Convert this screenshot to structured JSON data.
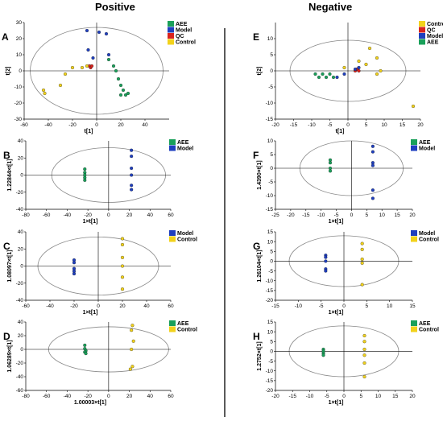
{
  "headers": {
    "left": "Positive",
    "right": "Negative"
  },
  "colors": {
    "AEE": "#1aa05a",
    "Model": "#1f3fbf",
    "QC": "#d8231e",
    "Control": "#f2d21b",
    "ellipse": "#888888"
  },
  "chart_data": [
    {
      "type": "scatter",
      "label": "A",
      "xlabel": "t[1]",
      "ylabel": "t[2]",
      "xlim": [
        -60,
        60
      ],
      "ylim": [
        -30,
        30
      ],
      "xticks": [
        -60,
        -40,
        -20,
        0,
        20,
        40
      ],
      "yticks": [
        -30,
        -20,
        -10,
        0,
        10,
        20,
        30
      ],
      "ellipse": {
        "rx": 55,
        "ry": 27
      },
      "legend": [
        "AEE",
        "Model",
        "QC",
        "Control"
      ],
      "series": [
        {
          "name": "AEE",
          "points": [
            [
              10,
              7
            ],
            [
              14,
              3
            ],
            [
              16,
              0
            ],
            [
              18,
              -5
            ],
            [
              20,
              -9
            ],
            [
              22,
              -12
            ],
            [
              24,
              -15
            ],
            [
              26,
              -14
            ],
            [
              20,
              -15
            ]
          ]
        },
        {
          "name": "Model",
          "points": [
            [
              -8,
              25
            ],
            [
              -7,
              13
            ],
            [
              2,
              24
            ],
            [
              8,
              23
            ],
            [
              10,
              10
            ],
            [
              -3,
              8
            ]
          ]
        },
        {
          "name": "QC",
          "points": [
            [
              -6,
              3
            ],
            [
              -5,
              2
            ],
            [
              -4,
              3
            ]
          ]
        },
        {
          "name": "Control",
          "points": [
            [
              -44,
              -12
            ],
            [
              -43,
              -14
            ],
            [
              -30,
              -9
            ],
            [
              -26,
              -2
            ],
            [
              -20,
              2
            ],
            [
              -12,
              2
            ],
            [
              -8,
              3
            ]
          ]
        }
      ]
    },
    {
      "type": "scatter",
      "label": "B",
      "xlabel": "1×t[1]",
      "ylabel": "1.22844×t[1]",
      "xlim": [
        -80,
        60
      ],
      "ylim": [
        -40,
        40
      ],
      "xticks": [
        -80,
        -60,
        -40,
        -20,
        0,
        20,
        40,
        60
      ],
      "yticks": [
        -40,
        -20,
        0,
        20,
        40
      ],
      "ellipse": {
        "rx": 55,
        "ry": 32
      },
      "legend": [
        "AEE",
        "Model"
      ],
      "series": [
        {
          "name": "AEE",
          "points": [
            [
              -23,
              7
            ],
            [
              -23,
              3
            ],
            [
              -23,
              0
            ],
            [
              -23,
              -3
            ],
            [
              -23,
              -6
            ]
          ]
        },
        {
          "name": "Model",
          "points": [
            [
              22,
              29
            ],
            [
              22,
              22
            ],
            [
              22,
              8
            ],
            [
              22,
              0
            ],
            [
              22,
              -12
            ],
            [
              22,
              -17
            ]
          ]
        }
      ]
    },
    {
      "type": "scatter",
      "label": "C",
      "xlabel": "1×t[1]",
      "ylabel": "1.08097×t[1]",
      "xlim": [
        -60,
        60
      ],
      "ylim": [
        -40,
        40
      ],
      "xticks": [
        -60,
        -40,
        -20,
        0,
        20,
        40,
        60
      ],
      "yticks": [
        -40,
        -20,
        0,
        20,
        40
      ],
      "ellipse": {
        "rx": 50,
        "ry": 34
      },
      "legend": [
        "Model",
        "Control"
      ],
      "series": [
        {
          "name": "Model",
          "points": [
            [
              -20,
              7
            ],
            [
              -20,
              4
            ],
            [
              -20,
              -3
            ],
            [
              -20,
              -6
            ],
            [
              -20,
              -9
            ]
          ]
        },
        {
          "name": "Control",
          "points": [
            [
              20,
              32
            ],
            [
              20,
              25
            ],
            [
              20,
              10
            ],
            [
              20,
              0
            ],
            [
              20,
              -13
            ],
            [
              20,
              -27
            ]
          ]
        }
      ]
    },
    {
      "type": "scatter",
      "label": "D",
      "xlabel": "1.00003×t[1]",
      "ylabel": "1.06289×t[1]",
      "xlim": [
        -80,
        60
      ],
      "ylim": [
        -60,
        40
      ],
      "xticks": [
        -80,
        -60,
        -40,
        -20,
        0,
        20,
        40,
        60
      ],
      "yticks": [
        -60,
        -40,
        -20,
        0,
        20,
        40
      ],
      "ellipse": {
        "rx": 58,
        "ry": 33
      },
      "legend": [
        "AEE",
        "Control"
      ],
      "series": [
        {
          "name": "AEE",
          "points": [
            [
              -23,
              6
            ],
            [
              -23,
              1
            ],
            [
              -22,
              -2
            ],
            [
              -23,
              -4
            ],
            [
              -22,
              -6
            ]
          ]
        },
        {
          "name": "Control",
          "points": [
            [
              23,
              35
            ],
            [
              22,
              28
            ],
            [
              24,
              12
            ],
            [
              22,
              0
            ],
            [
              23,
              -25
            ],
            [
              21,
              -29
            ]
          ]
        }
      ]
    },
    {
      "type": "scatter",
      "label": "E",
      "xlabel": "t[1]",
      "ylabel": "t[2]",
      "xlim": [
        -20,
        20
      ],
      "ylim": [
        -15,
        15
      ],
      "xticks": [
        -20,
        -15,
        -10,
        -5,
        0,
        5,
        10,
        15,
        20
      ],
      "yticks": [
        -15,
        -10,
        -5,
        0,
        5,
        10
      ],
      "ellipse": {
        "rx": 16,
        "ry": 9.5
      },
      "legend": [
        "Control",
        "QC",
        "Model",
        "AEE"
      ],
      "series": [
        {
          "name": "Control",
          "points": [
            [
              3,
              3
            ],
            [
              5,
              2
            ],
            [
              6,
              7
            ],
            [
              8,
              4
            ],
            [
              8,
              -1
            ],
            [
              18,
              -11
            ],
            [
              9,
              0
            ],
            [
              -1,
              1
            ]
          ]
        },
        {
          "name": "QC",
          "points": [
            [
              2,
              0
            ],
            [
              2.5,
              0.5
            ],
            [
              3,
              0
            ]
          ]
        },
        {
          "name": "Model",
          "points": [
            [
              -1,
              -1
            ],
            [
              -3,
              -2
            ],
            [
              3,
              1
            ],
            [
              2,
              0.5
            ]
          ]
        },
        {
          "name": "AEE",
          "points": [
            [
              -8,
              -2
            ],
            [
              -7,
              -1
            ],
            [
              -6,
              -2
            ],
            [
              -5,
              -1
            ],
            [
              -4,
              -2
            ],
            [
              -9,
              -1
            ]
          ]
        }
      ]
    },
    {
      "type": "scatter",
      "label": "F",
      "xlabel": "1×t[1]",
      "ylabel": "1.4390×t[1]",
      "xlim": [
        -25,
        20
      ],
      "ylim": [
        -15,
        10
      ],
      "xticks": [
        -25,
        -20,
        -15,
        -10,
        -5,
        0,
        5,
        10,
        15,
        20
      ],
      "yticks": [
        -15,
        -10,
        -5,
        0,
        5,
        10
      ],
      "ellipse": {
        "rx": 17,
        "ry": 10
      },
      "legend": [
        "AEE",
        "Model"
      ],
      "series": [
        {
          "name": "AEE",
          "points": [
            [
              -7,
              3
            ],
            [
              -7,
              2
            ],
            [
              -7,
              0
            ],
            [
              -7,
              -1
            ]
          ]
        },
        {
          "name": "Model",
          "points": [
            [
              7,
              8
            ],
            [
              7,
              6
            ],
            [
              7,
              2
            ],
            [
              7,
              1
            ],
            [
              7,
              -8
            ],
            [
              7,
              -11
            ]
          ]
        }
      ]
    },
    {
      "type": "scatter",
      "label": "G",
      "xlabel": "1×t[1]",
      "ylabel": "1.26104×t[1]",
      "xlim": [
        -15,
        15
      ],
      "ylim": [
        -20,
        15
      ],
      "xticks": [
        -15,
        -10,
        -5,
        0,
        5,
        10,
        15
      ],
      "yticks": [
        -20,
        -15,
        -10,
        -5,
        0,
        5,
        10,
        15
      ],
      "ellipse": {
        "rx": 12,
        "ry": 13
      },
      "legend": [
        "Model",
        "Control"
      ],
      "series": [
        {
          "name": "Model",
          "points": [
            [
              -4,
              3
            ],
            [
              -4,
              2
            ],
            [
              -4,
              0
            ],
            [
              -4,
              -4
            ],
            [
              -4,
              -5
            ]
          ]
        },
        {
          "name": "Control",
          "points": [
            [
              4,
              9
            ],
            [
              4,
              6
            ],
            [
              4,
              1
            ],
            [
              4,
              -1
            ],
            [
              4,
              -12
            ]
          ]
        }
      ]
    },
    {
      "type": "scatter",
      "label": "H",
      "xlabel": "1×t[1]",
      "ylabel": "1.2752×t[1]",
      "xlim": [
        -20,
        20
      ],
      "ylim": [
        -20,
        15
      ],
      "xticks": [
        -20,
        -15,
        -10,
        -5,
        0,
        5,
        10,
        15,
        20
      ],
      "yticks": [
        -20,
        -15,
        -10,
        -5,
        0,
        5,
        10,
        15
      ],
      "ellipse": {
        "rx": 16,
        "ry": 13
      },
      "legend": [
        "AEE",
        "Control"
      ],
      "series": [
        {
          "name": "AEE",
          "points": [
            [
              -6,
              1
            ],
            [
              -6,
              0
            ],
            [
              -6,
              -1
            ],
            [
              -6,
              -2
            ]
          ]
        },
        {
          "name": "Control",
          "points": [
            [
              6,
              8
            ],
            [
              6,
              5
            ],
            [
              6,
              1
            ],
            [
              6,
              -2
            ],
            [
              6,
              -6
            ],
            [
              6,
              -13
            ]
          ]
        }
      ]
    }
  ]
}
